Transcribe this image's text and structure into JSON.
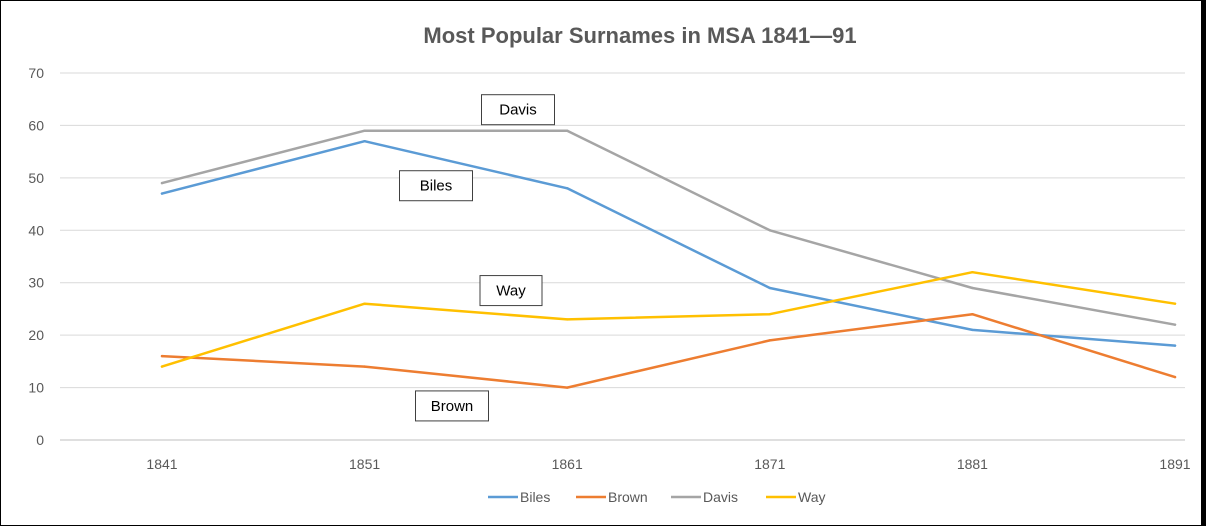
{
  "chart_data": {
    "type": "line",
    "title": "Most Popular Surnames in MSA 1841—91",
    "xlabel": "",
    "ylabel": "",
    "categories": [
      "1841",
      "1851",
      "1861",
      "1871",
      "1881",
      "1891"
    ],
    "ylim": [
      0,
      70
    ],
    "yticks": [
      "0",
      "10",
      "20",
      "30",
      "40",
      "50",
      "60",
      "70"
    ],
    "grid": true,
    "legend_position": "bottom",
    "series": [
      {
        "name": "Biles",
        "color": "#5b9bd5",
        "values": [
          47,
          57,
          48,
          29,
          21,
          18
        ]
      },
      {
        "name": "Brown",
        "color": "#ed7d31",
        "values": [
          16,
          14,
          10,
          19,
          24,
          12
        ]
      },
      {
        "name": "Davis",
        "color": "#a5a5a5",
        "values": [
          49,
          59,
          59,
          40,
          29,
          22
        ]
      },
      {
        "name": "Way",
        "color": "#ffc000",
        "values": [
          14,
          26,
          23,
          24,
          32,
          26
        ]
      }
    ],
    "annotations": [
      {
        "text": "Davis",
        "series": "Davis",
        "at_category": "1851",
        "at_value": 63
      },
      {
        "text": "Biles",
        "series": "Biles",
        "at_category": "1851",
        "at_value": 48.5
      },
      {
        "text": "Way",
        "series": "Way",
        "at_category": "1851",
        "at_value": 28.5
      },
      {
        "text": "Brown",
        "series": "Brown",
        "at_category": "1851",
        "at_value": 6.5
      }
    ]
  }
}
